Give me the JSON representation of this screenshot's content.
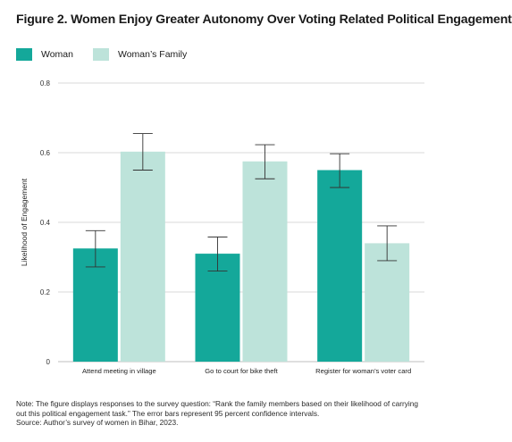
{
  "title": "Figure 2. Women Enjoy Greater Autonomy Over Voting Related Political Engagement",
  "note": {
    "line1": "Note: The figure displays responses to the survey question: “Rank the family members based on their likelihood of carrying",
    "line2": "out this political engagement task.” The error bars represent 95 percent confidence intervals.",
    "line3": "Source: Author’s survey of women in Bihar, 2023."
  },
  "colors": {
    "woman": "#14a89a",
    "family": "#bde3da",
    "grid": "#d9d9d9",
    "error": "#333333"
  },
  "chart_data": {
    "type": "bar",
    "title": "Figure 2. Women Enjoy Greater Autonomy Over Voting Related Political Engagement",
    "xlabel": "",
    "ylabel": "Likelihood of Engagement",
    "ylim": [
      0,
      0.8
    ],
    "yticks": [
      0,
      0.2,
      0.4,
      0.6,
      0.8
    ],
    "ytick_labels": [
      "0",
      "0.2",
      "0.4",
      "0.6",
      "0.8"
    ],
    "grid": true,
    "legend_position": "top-left",
    "categories": [
      "Attend meeting in village",
      "Go to court for bike theft",
      "Register for woman’s voter card"
    ],
    "series": [
      {
        "name": "Woman",
        "values": [
          0.325,
          0.31,
          0.55
        ],
        "ci_low": [
          0.272,
          0.26,
          0.5
        ],
        "ci_high": [
          0.376,
          0.358,
          0.597
        ]
      },
      {
        "name": "Woman’s Family",
        "values": [
          0.603,
          0.575,
          0.34
        ],
        "ci_low": [
          0.55,
          0.525,
          0.29
        ],
        "ci_high": [
          0.655,
          0.623,
          0.39
        ]
      }
    ]
  }
}
